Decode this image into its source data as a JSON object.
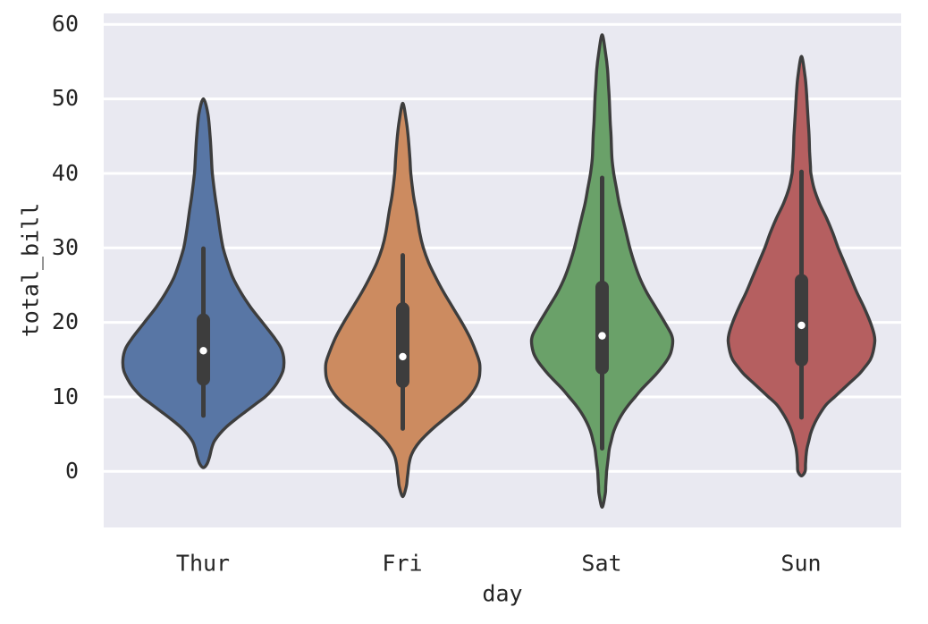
{
  "figure": {
    "background": "#ffffff",
    "axes_background": "#e9e9f1",
    "gridline_color": "#ffffff",
    "edge_color": "#3d3d3d",
    "inner_box_color": "#3d3d3d",
    "median_dot_color": "#ffffff",
    "text_color": "#252525"
  },
  "chart_data": {
    "type": "violin",
    "title": "",
    "xlabel": "day",
    "ylabel": "total_bill",
    "categories": [
      "Thur",
      "Fri",
      "Sat",
      "Sun"
    ],
    "yticklabels": [
      "60",
      "50",
      "40",
      "30",
      "20",
      "10",
      "0"
    ],
    "ytick_values": [
      60,
      50,
      40,
      30,
      20,
      10,
      0
    ],
    "ylim": [
      -7.5,
      61.4
    ],
    "grid": true,
    "legend": null,
    "inner": "box",
    "series": [
      {
        "name": "Thur",
        "fill": "#5876a5",
        "median": 16.2,
        "q1": 12.4,
        "q3": 20.3,
        "whisker_low": 7.5,
        "whisker_high": 29.9,
        "kde_min": 0.5,
        "kde_max": 50.0,
        "profile": [
          [
            50.0,
            0
          ],
          [
            48,
            5
          ],
          [
            45,
            7.5
          ],
          [
            42,
            9
          ],
          [
            40,
            10
          ],
          [
            37,
            13
          ],
          [
            35,
            15.5
          ],
          [
            32,
            19
          ],
          [
            30,
            22
          ],
          [
            28,
            27
          ],
          [
            26,
            33
          ],
          [
            24,
            42
          ],
          [
            22,
            53
          ],
          [
            20,
            66
          ],
          [
            18,
            79
          ],
          [
            16.5,
            87
          ],
          [
            15,
            90
          ],
          [
            13.5,
            89
          ],
          [
            12,
            83
          ],
          [
            11,
            77
          ],
          [
            10,
            69
          ],
          [
            9,
            58
          ],
          [
            8,
            47
          ],
          [
            7,
            36
          ],
          [
            6,
            26
          ],
          [
            5,
            18
          ],
          [
            4,
            12
          ],
          [
            3,
            9
          ],
          [
            2,
            7
          ],
          [
            1,
            4
          ],
          [
            0.5,
            0
          ]
        ]
      },
      {
        "name": "Fri",
        "fill": "#cc8b60",
        "median": 15.4,
        "q1": 12.1,
        "q3": 21.8,
        "whisker_low": 5.75,
        "whisker_high": 29.0,
        "kde_min": -3.4,
        "kde_max": 49.4,
        "profile": [
          [
            49.4,
            0
          ],
          [
            47,
            4
          ],
          [
            45,
            6
          ],
          [
            42,
            8
          ],
          [
            40,
            9
          ],
          [
            37,
            12
          ],
          [
            35,
            15
          ],
          [
            32,
            19
          ],
          [
            30,
            23
          ],
          [
            28,
            29
          ],
          [
            26,
            37
          ],
          [
            24,
            46
          ],
          [
            22,
            56
          ],
          [
            20,
            66
          ],
          [
            18,
            75
          ],
          [
            16,
            82
          ],
          [
            14.5,
            86
          ],
          [
            13,
            86
          ],
          [
            12,
            84
          ],
          [
            11,
            80
          ],
          [
            10,
            74
          ],
          [
            9,
            66
          ],
          [
            8,
            56
          ],
          [
            7,
            46
          ],
          [
            6,
            36
          ],
          [
            5,
            27
          ],
          [
            4,
            19
          ],
          [
            3,
            13
          ],
          [
            2,
            9
          ],
          [
            1,
            7
          ],
          [
            0,
            6
          ],
          [
            -1,
            5
          ],
          [
            -2,
            4
          ],
          [
            -3.4,
            0
          ]
        ]
      },
      {
        "name": "Sat",
        "fill": "#6aa169",
        "median": 18.2,
        "q1": 13.9,
        "q3": 24.7,
        "whisker_low": 3.1,
        "whisker_high": 39.4,
        "kde_min": -4.8,
        "kde_max": 58.6,
        "profile": [
          [
            58.6,
            0
          ],
          [
            56,
            4
          ],
          [
            54,
            6
          ],
          [
            52,
            7
          ],
          [
            50,
            8
          ],
          [
            47,
            9
          ],
          [
            45,
            10
          ],
          [
            42,
            11
          ],
          [
            40,
            13
          ],
          [
            38,
            16
          ],
          [
            36,
            19
          ],
          [
            34,
            23
          ],
          [
            32,
            27
          ],
          [
            30,
            31
          ],
          [
            28,
            36
          ],
          [
            26,
            42
          ],
          [
            24,
            50
          ],
          [
            22,
            60
          ],
          [
            20,
            70
          ],
          [
            18.5,
            77
          ],
          [
            17.5,
            79
          ],
          [
            16,
            77
          ],
          [
            15,
            73
          ],
          [
            14,
            67
          ],
          [
            13,
            60
          ],
          [
            12,
            52
          ],
          [
            11,
            44
          ],
          [
            10,
            37
          ],
          [
            9,
            30
          ],
          [
            8,
            24
          ],
          [
            7,
            19
          ],
          [
            6,
            15
          ],
          [
            5,
            12
          ],
          [
            4,
            10
          ],
          [
            3,
            8
          ],
          [
            2,
            7
          ],
          [
            1,
            6
          ],
          [
            0,
            5
          ],
          [
            -1,
            4.5
          ],
          [
            -2,
            4
          ],
          [
            -3,
            3.5
          ],
          [
            -4.8,
            0
          ]
        ]
      },
      {
        "name": "Sun",
        "fill": "#b55f60",
        "median": 19.6,
        "q1": 15.0,
        "q3": 25.6,
        "whisker_low": 7.25,
        "whisker_high": 40.2,
        "kde_min": -0.6,
        "kde_max": 55.7,
        "profile": [
          [
            55.7,
            0
          ],
          [
            53,
            4
          ],
          [
            51,
            5.5
          ],
          [
            49,
            6.5
          ],
          [
            47,
            7.5
          ],
          [
            45,
            8.5
          ],
          [
            43,
            9
          ],
          [
            41,
            10
          ],
          [
            40,
            10.5
          ],
          [
            38,
            14
          ],
          [
            36,
            20
          ],
          [
            34,
            28
          ],
          [
            32,
            35
          ],
          [
            30,
            41
          ],
          [
            28,
            48
          ],
          [
            26,
            55
          ],
          [
            24,
            62
          ],
          [
            22,
            70
          ],
          [
            20,
            77
          ],
          [
            18.5,
            81
          ],
          [
            17.5,
            82
          ],
          [
            16,
            80
          ],
          [
            15,
            77
          ],
          [
            14,
            71
          ],
          [
            13,
            64
          ],
          [
            12,
            55
          ],
          [
            11,
            46
          ],
          [
            10,
            37
          ],
          [
            9,
            28
          ],
          [
            8,
            22
          ],
          [
            7,
            17
          ],
          [
            6,
            13
          ],
          [
            5,
            10
          ],
          [
            4,
            8
          ],
          [
            3,
            6
          ],
          [
            2,
            5
          ],
          [
            1,
            4.5
          ],
          [
            0,
            4
          ],
          [
            -0.6,
            0
          ]
        ]
      }
    ]
  }
}
